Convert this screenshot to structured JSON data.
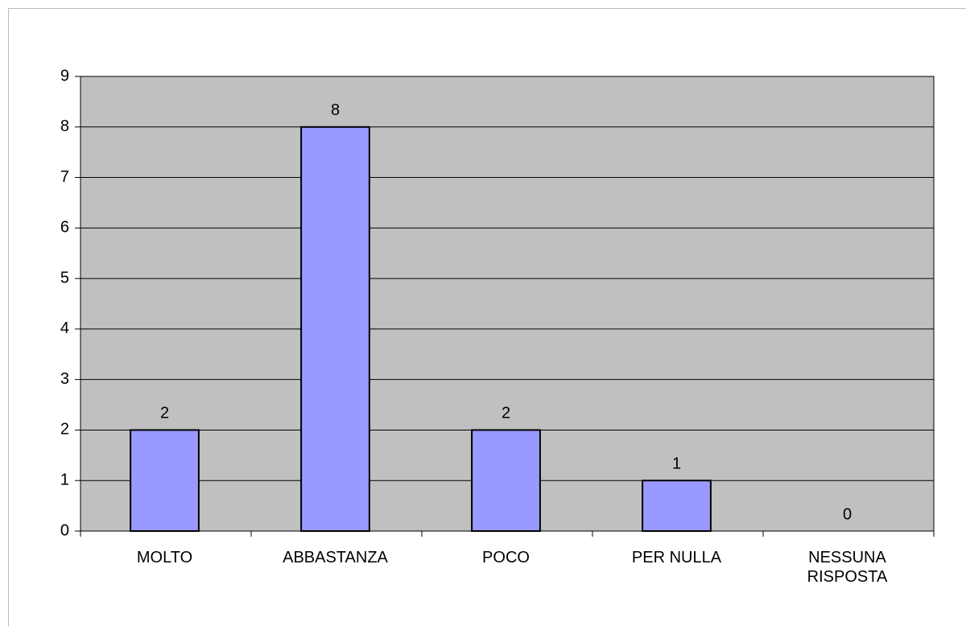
{
  "chart_data": {
    "type": "bar",
    "categories": [
      "MOLTO",
      "ABBASTANZA",
      "POCO",
      "PER NULLA",
      "NESSUNA RISPOSTA"
    ],
    "values": [
      2,
      8,
      2,
      1,
      0
    ],
    "color": "#9999ff",
    "ylim": [
      0,
      9
    ],
    "yticks": [
      0,
      1,
      2,
      3,
      4,
      5,
      6,
      7,
      8,
      9
    ],
    "grid": true
  }
}
